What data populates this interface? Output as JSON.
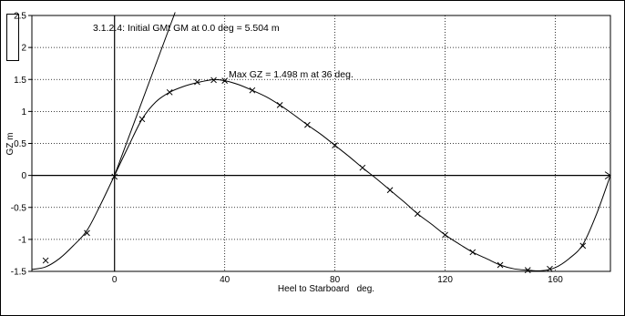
{
  "chart_data": {
    "type": "line",
    "title": "",
    "xlabel": "Heel to Starboard   deg.",
    "ylabel": "GZ  m",
    "xlim": [
      -30,
      180
    ],
    "ylim": [
      -1.5,
      2.5
    ],
    "grid": true,
    "x_ticks": [
      0,
      40,
      80,
      120,
      160
    ],
    "x_tick_labels": [
      "0",
      "40",
      "80",
      "120",
      "160"
    ],
    "y_ticks": [
      -1.5,
      -1,
      -0.5,
      0,
      0.5,
      1,
      1.5,
      2,
      2.5
    ],
    "y_tick_labels": [
      "-1.5",
      "-1",
      "-0.5",
      "0",
      "0.5",
      "1",
      "1.5",
      "2",
      "2.5"
    ],
    "series": [
      {
        "x": [
          -30,
          -25,
          -20,
          -15,
          -10,
          -5,
          0,
          5,
          10,
          15,
          20,
          25,
          30,
          36,
          40,
          45,
          50,
          55,
          60,
          65,
          70,
          75,
          80,
          85,
          90,
          95,
          100,
          105,
          110,
          115,
          120,
          125,
          130,
          135,
          140,
          145,
          150,
          155,
          160,
          165,
          170,
          175,
          180
        ],
        "y": [
          -1.47,
          -1.43,
          -1.3,
          -1.1,
          -0.86,
          -0.45,
          0.0,
          0.45,
          0.88,
          1.15,
          1.3,
          1.39,
          1.45,
          1.498,
          1.48,
          1.42,
          1.33,
          1.23,
          1.1,
          0.95,
          0.79,
          0.64,
          0.47,
          0.3,
          0.12,
          -0.05,
          -0.23,
          -0.41,
          -0.6,
          -0.76,
          -0.93,
          -1.07,
          -1.2,
          -1.3,
          -1.4,
          -1.46,
          -1.48,
          -1.49,
          -1.44,
          -1.3,
          -1.08,
          -0.6,
          0.0
        ]
      }
    ],
    "markers": {
      "x": [
        -25,
        -10,
        0,
        10,
        20,
        30,
        36,
        40,
        50,
        60,
        70,
        80,
        90,
        100,
        110,
        120,
        130,
        140,
        150,
        158,
        170
      ],
      "y": [
        -1.33,
        -0.9,
        -0.02,
        0.88,
        1.3,
        1.46,
        1.49,
        1.48,
        1.33,
        1.1,
        0.79,
        0.47,
        0.12,
        -0.23,
        -0.6,
        -0.93,
        -1.2,
        -1.4,
        -1.48,
        -1.46,
        -1.1
      ]
    },
    "gm_line": {
      "x": [
        0,
        22
      ],
      "y": [
        0,
        2.55
      ]
    },
    "annotations": {
      "gm": "3.1.2.4: Initial GMt GM at 0.0 deg = 5.504 m",
      "max_gz": "Max GZ = 1.498 m at 36 deg."
    }
  }
}
